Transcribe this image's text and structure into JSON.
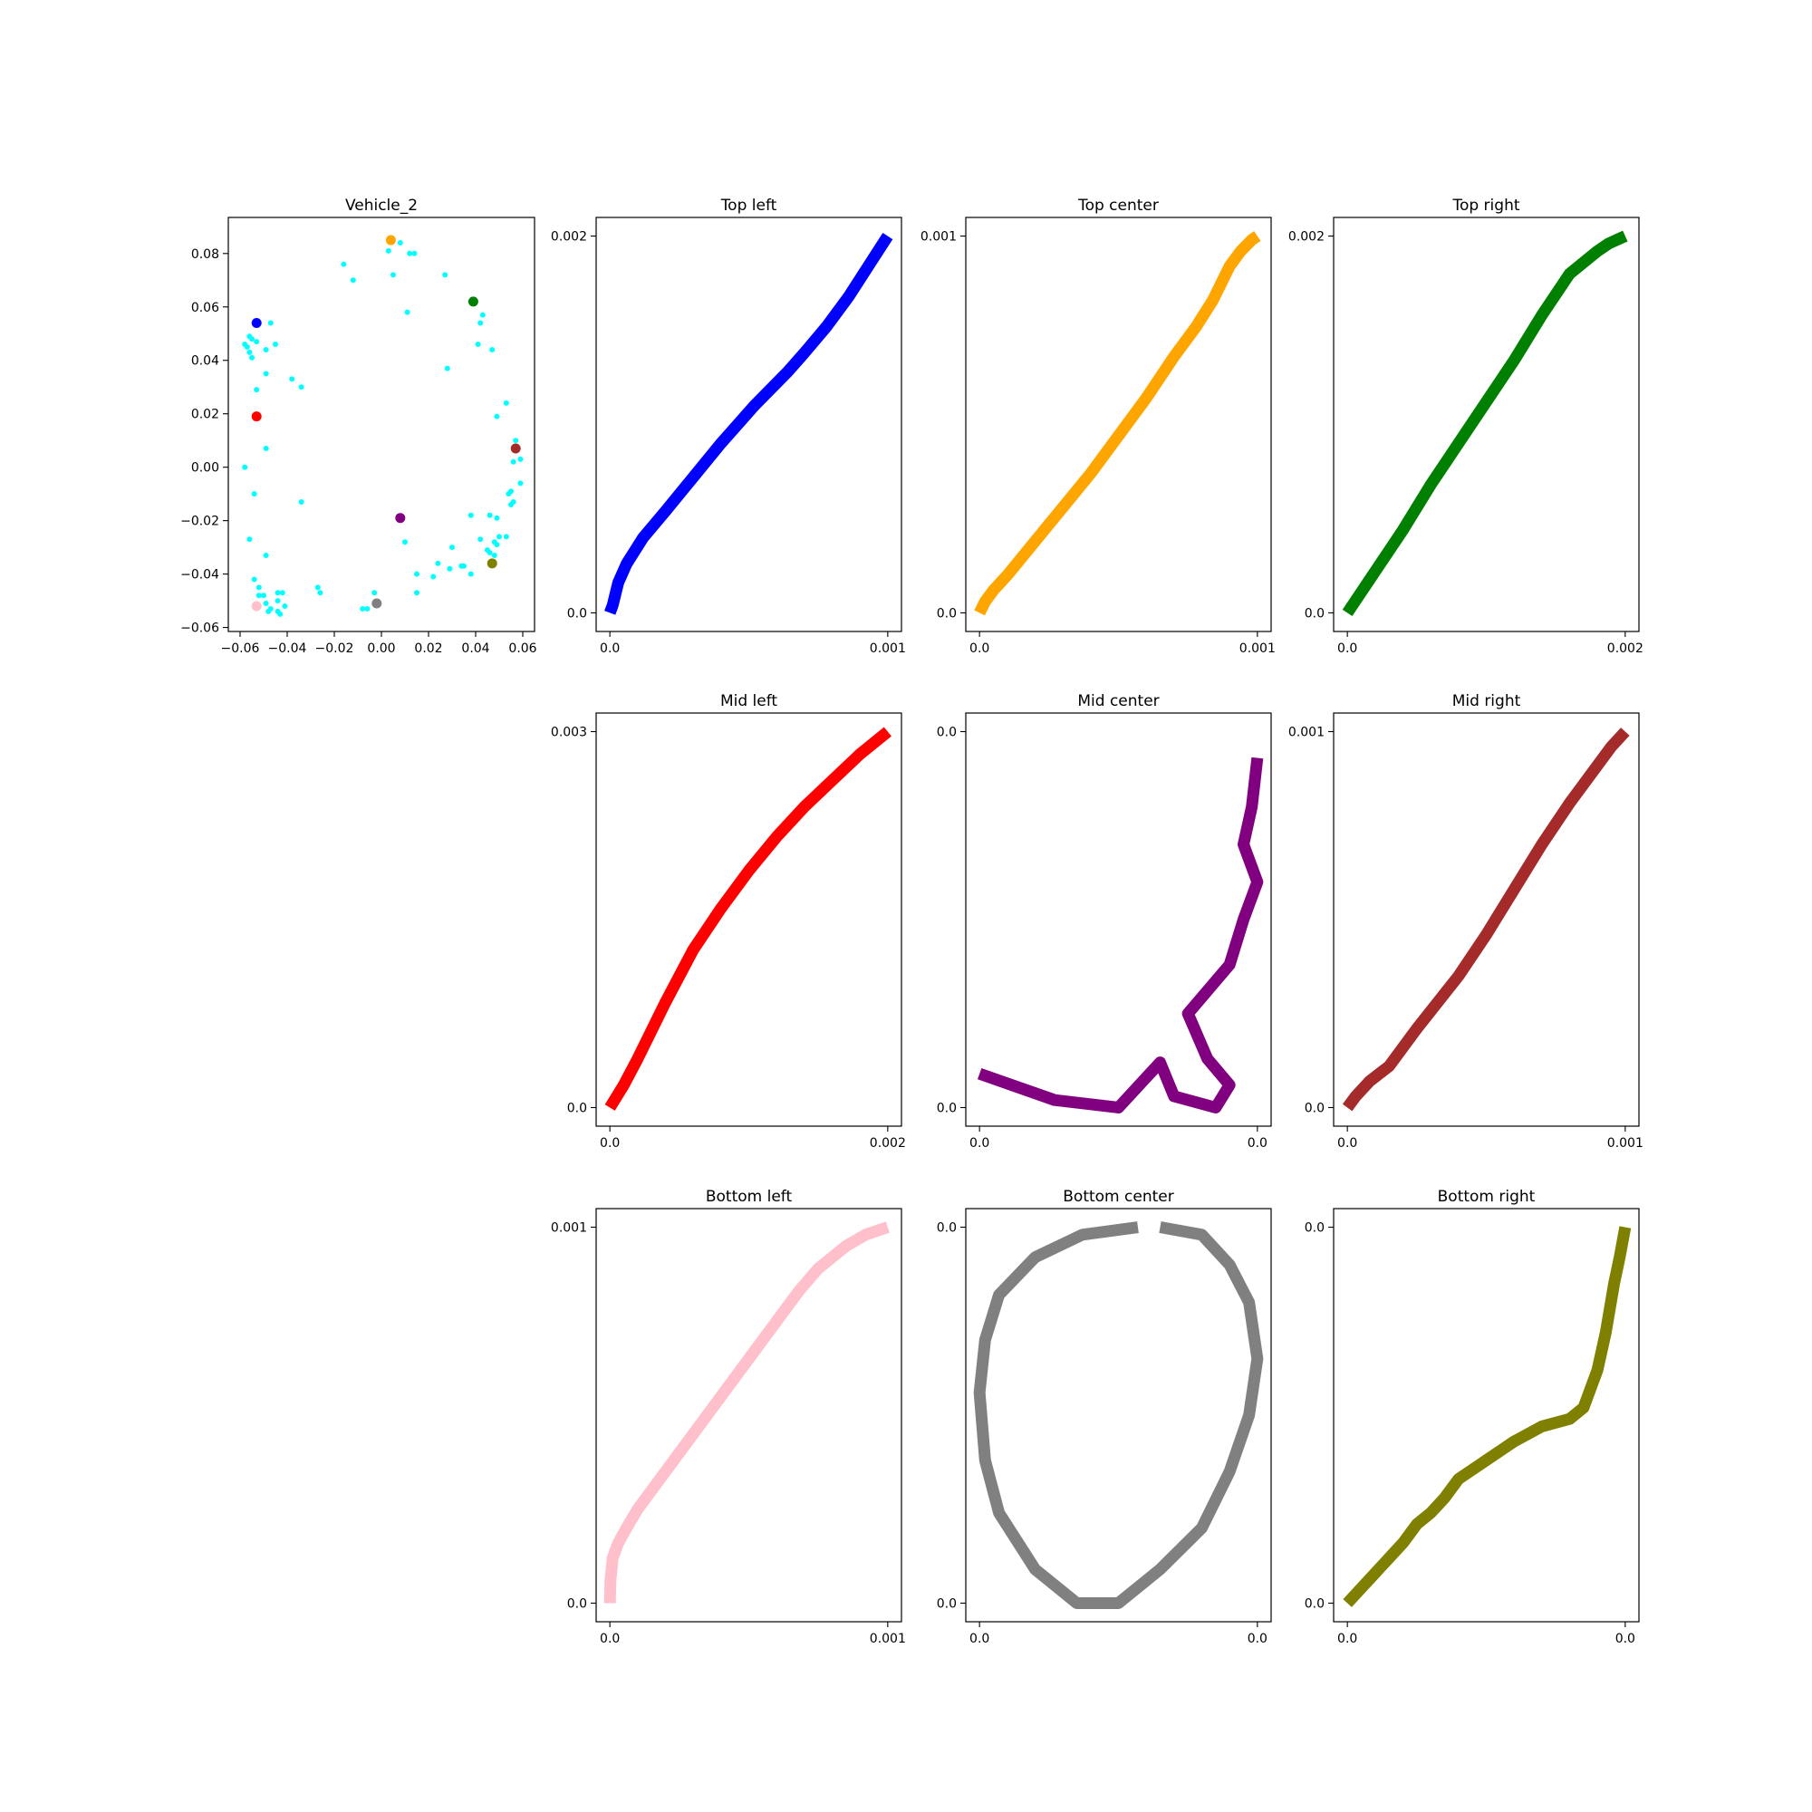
{
  "figure": {
    "panels": [
      {
        "key": "scatter",
        "title": "Vehicle_2"
      },
      {
        "key": "top_left",
        "title": "Top left"
      },
      {
        "key": "top_center",
        "title": "Top center"
      },
      {
        "key": "top_right",
        "title": "Top right"
      },
      {
        "key": "mid_left",
        "title": "Mid left"
      },
      {
        "key": "mid_center",
        "title": "Mid center"
      },
      {
        "key": "mid_right",
        "title": "Mid right"
      },
      {
        "key": "bottom_left",
        "title": "Bottom left"
      },
      {
        "key": "bottom_center",
        "title": "Bottom center"
      },
      {
        "key": "bottom_right",
        "title": "Bottom right"
      }
    ]
  },
  "chart_data": [
    {
      "type": "scatter",
      "title": "Vehicle_2",
      "xlim": [
        -0.065,
        0.065
      ],
      "ylim": [
        -0.0615,
        0.0935
      ],
      "xticks": [
        -0.06,
        -0.04,
        -0.02,
        0.0,
        0.02,
        0.04,
        0.06
      ],
      "xtick_labels": [
        "−0.06",
        "−0.04",
        "−0.02",
        "0.00",
        "0.02",
        "0.04",
        "0.06"
      ],
      "yticks": [
        -0.06,
        -0.04,
        -0.02,
        0.0,
        0.02,
        0.04,
        0.06,
        0.08
      ],
      "ytick_labels": [
        "−0.06",
        "−0.04",
        "−0.02",
        "0.00",
        "0.02",
        "0.04",
        "0.06",
        "0.08"
      ],
      "grid": false,
      "series": [
        {
          "color": "#00ffff",
          "marker_size": "small",
          "points": [
            [
              0.003,
              0.081
            ],
            [
              0.008,
              0.084
            ],
            [
              0.012,
              0.08
            ],
            [
              0.014,
              0.08
            ],
            [
              0.005,
              0.072
            ],
            [
              -0.016,
              0.076
            ],
            [
              -0.012,
              0.07
            ],
            [
              0.011,
              0.058
            ],
            [
              0.027,
              0.072
            ],
            [
              0.043,
              0.057
            ],
            [
              0.042,
              0.054
            ],
            [
              0.041,
              0.046
            ],
            [
              0.047,
              0.044
            ],
            [
              0.028,
              0.037
            ],
            [
              0.053,
              0.024
            ],
            [
              0.049,
              0.019
            ],
            [
              0.057,
              0.01
            ],
            [
              0.059,
              0.003
            ],
            [
              0.056,
              0.002
            ],
            [
              0.059,
              -0.006
            ],
            [
              0.055,
              -0.009
            ],
            [
              0.054,
              -0.01
            ],
            [
              0.056,
              -0.013
            ],
            [
              0.055,
              -0.014
            ],
            [
              0.046,
              -0.018
            ],
            [
              0.049,
              -0.019
            ],
            [
              0.038,
              -0.018
            ],
            [
              0.053,
              -0.026
            ],
            [
              0.05,
              -0.026
            ],
            [
              0.048,
              -0.028
            ],
            [
              0.042,
              -0.027
            ],
            [
              0.049,
              -0.029
            ],
            [
              0.045,
              -0.031
            ],
            [
              0.046,
              -0.032
            ],
            [
              0.048,
              -0.033
            ],
            [
              0.03,
              -0.03
            ],
            [
              0.035,
              -0.037
            ],
            [
              0.034,
              -0.037
            ],
            [
              0.029,
              -0.038
            ],
            [
              0.038,
              -0.04
            ],
            [
              0.024,
              -0.036
            ],
            [
              0.022,
              -0.041
            ],
            [
              0.015,
              -0.04
            ],
            [
              0.01,
              -0.028
            ],
            [
              0.015,
              -0.047
            ],
            [
              -0.003,
              -0.047
            ],
            [
              -0.008,
              -0.053
            ],
            [
              -0.006,
              -0.053
            ],
            [
              -0.027,
              -0.045
            ],
            [
              -0.026,
              -0.047
            ],
            [
              -0.042,
              -0.047
            ],
            [
              -0.044,
              -0.047
            ],
            [
              -0.041,
              -0.052
            ],
            [
              -0.044,
              -0.05
            ],
            [
              -0.047,
              -0.053
            ],
            [
              -0.049,
              -0.051
            ],
            [
              -0.044,
              -0.054
            ],
            [
              -0.043,
              -0.055
            ],
            [
              -0.048,
              -0.054
            ],
            [
              -0.05,
              -0.048
            ],
            [
              -0.052,
              -0.048
            ],
            [
              -0.052,
              -0.045
            ],
            [
              -0.054,
              -0.042
            ],
            [
              -0.049,
              -0.033
            ],
            [
              -0.056,
              -0.027
            ],
            [
              -0.054,
              -0.01
            ],
            [
              -0.058,
              0.0
            ],
            [
              -0.049,
              0.007
            ],
            [
              -0.034,
              -0.013
            ],
            [
              -0.053,
              0.029
            ],
            [
              -0.049,
              0.035
            ],
            [
              -0.038,
              0.033
            ],
            [
              -0.034,
              0.03
            ],
            [
              -0.055,
              0.041
            ],
            [
              -0.056,
              0.043
            ],
            [
              -0.057,
              0.045
            ],
            [
              -0.058,
              0.046
            ],
            [
              -0.053,
              0.047
            ],
            [
              -0.055,
              0.048
            ],
            [
              -0.056,
              0.049
            ],
            [
              -0.049,
              0.044
            ],
            [
              -0.045,
              0.046
            ],
            [
              -0.047,
              0.054
            ]
          ]
        },
        {
          "color": "varied",
          "marker_size": "large",
          "points": [
            {
              "x": 0.004,
              "y": 0.085,
              "color": "#ffa500"
            },
            {
              "x": -0.053,
              "y": 0.054,
              "color": "#0000ff"
            },
            {
              "x": 0.039,
              "y": 0.062,
              "color": "#008000"
            },
            {
              "x": -0.053,
              "y": 0.019,
              "color": "#ff0000"
            },
            {
              "x": 0.057,
              "y": 0.007,
              "color": "#a52a2a"
            },
            {
              "x": 0.008,
              "y": -0.019,
              "color": "#800080"
            },
            {
              "x": 0.047,
              "y": -0.036,
              "color": "#808000"
            },
            {
              "x": -0.053,
              "y": -0.052,
              "color": "#ffc0cb"
            },
            {
              "x": -0.002,
              "y": -0.051,
              "color": "#808080"
            }
          ]
        }
      ]
    },
    {
      "type": "line",
      "title": "Top left",
      "color": "#0000ff",
      "xticks": [
        "0.0",
        "0.001"
      ],
      "yticks": [
        "0.0",
        "0.002"
      ],
      "grid": false,
      "x": [
        0.0,
        0.01,
        0.02,
        0.03,
        0.06,
        0.12,
        0.2,
        0.3,
        0.4,
        0.52,
        0.64,
        0.7,
        0.78,
        0.86,
        0.93,
        1.0
      ],
      "y": [
        0.0,
        0.02,
        0.05,
        0.08,
        0.13,
        0.2,
        0.27,
        0.36,
        0.45,
        0.55,
        0.64,
        0.69,
        0.76,
        0.84,
        0.92,
        1.0
      ]
    },
    {
      "type": "line",
      "title": "Top center",
      "color": "#ffa500",
      "xticks": [
        "0.0",
        "0.001"
      ],
      "yticks": [
        "0.0",
        "0.001"
      ],
      "grid": false,
      "x": [
        0.0,
        0.02,
        0.05,
        0.1,
        0.2,
        0.3,
        0.4,
        0.5,
        0.6,
        0.7,
        0.78,
        0.84,
        0.9,
        0.94,
        0.98,
        1.0
      ],
      "y": [
        0.0,
        0.03,
        0.06,
        0.1,
        0.19,
        0.28,
        0.37,
        0.47,
        0.57,
        0.68,
        0.76,
        0.83,
        0.92,
        0.96,
        0.99,
        1.0
      ]
    },
    {
      "type": "line",
      "title": "Top right",
      "color": "#008000",
      "xticks": [
        "0.0",
        "0.002"
      ],
      "yticks": [
        "0.0",
        "0.002"
      ],
      "grid": false,
      "x": [
        0.0,
        0.1,
        0.2,
        0.3,
        0.4,
        0.5,
        0.6,
        0.7,
        0.8,
        0.9,
        0.94,
        0.97,
        1.0
      ],
      "y": [
        0.0,
        0.11,
        0.22,
        0.34,
        0.45,
        0.56,
        0.67,
        0.79,
        0.9,
        0.96,
        0.98,
        0.99,
        1.0
      ]
    },
    {
      "type": "line",
      "title": "Mid left",
      "color": "#ff0000",
      "xticks": [
        "0.0",
        "0.002"
      ],
      "yticks": [
        "0.0",
        "0.003"
      ],
      "grid": false,
      "x": [
        0.0,
        0.05,
        0.1,
        0.2,
        0.3,
        0.4,
        0.5,
        0.6,
        0.7,
        0.8,
        0.9,
        1.0
      ],
      "y": [
        0.0,
        0.06,
        0.13,
        0.28,
        0.42,
        0.53,
        0.63,
        0.72,
        0.8,
        0.87,
        0.94,
        1.0
      ]
    },
    {
      "type": "line",
      "title": "Mid center",
      "color": "#800080",
      "xticks": [
        "0.0",
        "0.0"
      ],
      "yticks": [
        "0.0",
        "0.0"
      ],
      "grid": false,
      "x": [
        1.0,
        0.98,
        0.95,
        1.0,
        0.95,
        0.9,
        0.75,
        0.82,
        0.9,
        0.85,
        0.7,
        0.65,
        0.5,
        0.27,
        0.0
      ],
      "y": [
        0.93,
        0.8,
        0.7,
        0.6,
        0.5,
        0.38,
        0.25,
        0.13,
        0.06,
        0.0,
        0.03,
        0.12,
        0.0,
        0.02,
        0.09
      ]
    },
    {
      "type": "line",
      "title": "Mid right",
      "color": "#a52a2a",
      "xticks": [
        "0.0",
        "0.001"
      ],
      "yticks": [
        "0.0",
        "0.001"
      ],
      "grid": false,
      "x": [
        0.0,
        0.03,
        0.08,
        0.15,
        0.25,
        0.4,
        0.5,
        0.6,
        0.7,
        0.8,
        0.9,
        0.95,
        1.0
      ],
      "y": [
        0.0,
        0.03,
        0.07,
        0.11,
        0.21,
        0.35,
        0.46,
        0.58,
        0.7,
        0.81,
        0.91,
        0.96,
        1.0
      ]
    },
    {
      "type": "line",
      "title": "Bottom left",
      "color": "#ffc0cb",
      "xticks": [
        "0.0",
        "0.001"
      ],
      "yticks": [
        "0.0",
        "0.001"
      ],
      "grid": false,
      "x": [
        0.0,
        0.002,
        0.01,
        0.03,
        0.06,
        0.1,
        0.2,
        0.3,
        0.4,
        0.5,
        0.6,
        0.68,
        0.75,
        0.85,
        0.92,
        1.0
      ],
      "y": [
        0.0,
        0.06,
        0.12,
        0.16,
        0.2,
        0.25,
        0.35,
        0.45,
        0.55,
        0.65,
        0.75,
        0.83,
        0.89,
        0.95,
        0.98,
        1.0
      ]
    },
    {
      "type": "line",
      "title": "Bottom center",
      "color": "#808080",
      "xticks": [
        "0.0",
        "0.0"
      ],
      "yticks": [
        "0.0",
        "0.0"
      ],
      "grid": false,
      "x": [
        0.65,
        0.8,
        0.9,
        0.97,
        1.0,
        0.97,
        0.9,
        0.8,
        0.65,
        0.5,
        0.35,
        0.2,
        0.07,
        0.02,
        0.0,
        0.02,
        0.07,
        0.2,
        0.37,
        0.57
      ],
      "y": [
        1.0,
        0.98,
        0.9,
        0.8,
        0.65,
        0.5,
        0.35,
        0.2,
        0.09,
        0.0,
        0.0,
        0.09,
        0.24,
        0.38,
        0.56,
        0.7,
        0.82,
        0.92,
        0.98,
        1.0
      ]
    },
    {
      "type": "line",
      "title": "Bottom right",
      "color": "#808000",
      "xticks": [
        "0.0",
        "0.0"
      ],
      "yticks": [
        "0.0",
        "0.0"
      ],
      "grid": false,
      "x": [
        0.0,
        0.05,
        0.1,
        0.15,
        0.2,
        0.25,
        0.3,
        0.35,
        0.4,
        0.5,
        0.6,
        0.7,
        0.8,
        0.85,
        0.9,
        0.93,
        0.96,
        0.98,
        1.0
      ],
      "y": [
        0.0,
        0.04,
        0.08,
        0.12,
        0.16,
        0.21,
        0.24,
        0.28,
        0.33,
        0.38,
        0.43,
        0.47,
        0.49,
        0.52,
        0.62,
        0.72,
        0.85,
        0.92,
        1.0
      ]
    }
  ]
}
